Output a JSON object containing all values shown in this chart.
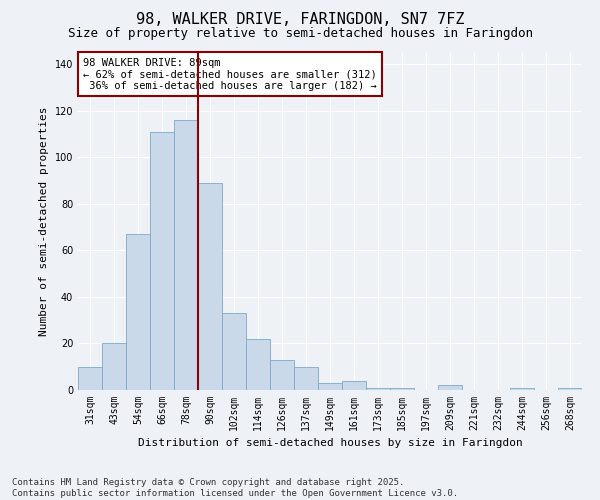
{
  "title1": "98, WALKER DRIVE, FARINGDON, SN7 7FZ",
  "title2": "Size of property relative to semi-detached houses in Faringdon",
  "xlabel": "Distribution of semi-detached houses by size in Faringdon",
  "ylabel": "Number of semi-detached properties",
  "categories": [
    "31sqm",
    "43sqm",
    "54sqm",
    "66sqm",
    "78sqm",
    "90sqm",
    "102sqm",
    "114sqm",
    "126sqm",
    "137sqm",
    "149sqm",
    "161sqm",
    "173sqm",
    "185sqm",
    "197sqm",
    "209sqm",
    "221sqm",
    "232sqm",
    "244sqm",
    "256sqm",
    "268sqm"
  ],
  "values": [
    10,
    20,
    67,
    111,
    116,
    89,
    33,
    22,
    13,
    10,
    3,
    4,
    1,
    1,
    0,
    2,
    0,
    0,
    1,
    0,
    1
  ],
  "bar_color": "#c9d9ea",
  "bar_edge_color": "#7aaac8",
  "vline_color": "#8b0000",
  "annotation_text": "98 WALKER DRIVE: 89sqm\n← 62% of semi-detached houses are smaller (312)\n 36% of semi-detached houses are larger (182) →",
  "annotation_box_color": "#ffffff",
  "annotation_box_edge_color": "#8b0000",
  "ylim": [
    0,
    145
  ],
  "yticks": [
    0,
    20,
    40,
    60,
    80,
    100,
    120,
    140
  ],
  "footnote": "Contains HM Land Registry data © Crown copyright and database right 2025.\nContains public sector information licensed under the Open Government Licence v3.0.",
  "bg_color": "#eef2f7",
  "plot_bg_color": "#eef2f7",
  "title1_fontsize": 11,
  "title2_fontsize": 9,
  "axis_label_fontsize": 8,
  "tick_fontsize": 7,
  "annotation_fontsize": 7.5,
  "footnote_fontsize": 6.5
}
